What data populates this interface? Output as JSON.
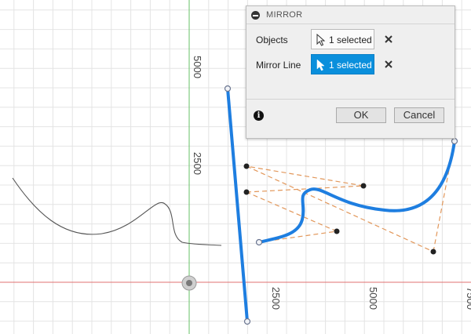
{
  "dialog": {
    "title": "MIRROR",
    "rows": [
      {
        "label": "Objects",
        "value": "1 selected",
        "active": false
      },
      {
        "label": "Mirror Line",
        "value": "1 selected",
        "active": true
      }
    ],
    "ok_label": "OK",
    "cancel_label": "Cancel"
  },
  "axes": {
    "y_ticks": [
      "5000",
      "2500"
    ],
    "x_ticks": [
      "2500",
      "5000",
      "7500"
    ]
  },
  "colors": {
    "grid": "#e4e4e4",
    "x_axis": "#e07070",
    "y_axis": "#7ecb7e",
    "selected_spline": "#1e7ee0",
    "control_polygon": "#e2975a",
    "sketch_curve": "#555555",
    "active_button": "#0a8fdc"
  }
}
